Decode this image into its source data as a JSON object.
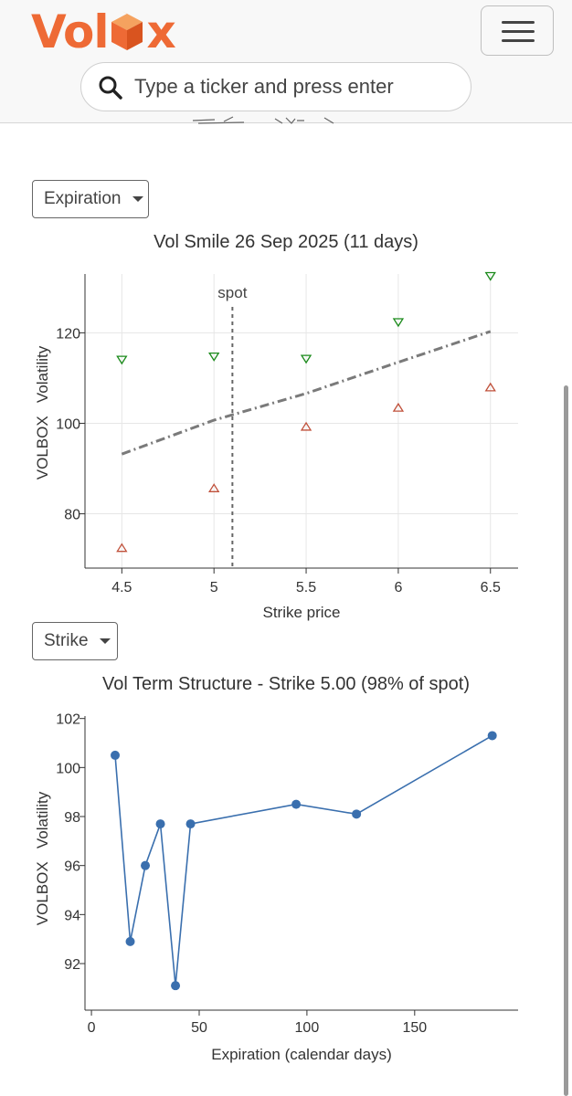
{
  "header": {
    "logo_text_pre": "Vol",
    "logo_text_post": "x",
    "logo_cube_letter": "bo",
    "menu_icon": "hamburger-menu-icon",
    "search": {
      "icon": "search-icon",
      "placeholder": "Type a ticker and press enter"
    },
    "colors": {
      "brand": "#ee6a35",
      "cube_top": "#f5a25f",
      "cube_side": "#ee6a35"
    }
  },
  "controls": {
    "expiration_label": "Expiration",
    "strike_label": "Strike"
  },
  "colors": {
    "line_blue": "#3a6fae",
    "fit_gray": "#7a7a7a",
    "ask_green": "#1a8a1a",
    "bid_red": "#c0503a",
    "grid": "#e6e6e6"
  },
  "chart_data": [
    {
      "type": "scatter",
      "title": "Vol Smile 26 Sep 2025 (11 days)",
      "xlabel": "Strike price",
      "ylabel": "VOLBOX   Volatility",
      "xlim": [
        4.3,
        6.65
      ],
      "ylim": [
        68,
        133
      ],
      "xticks": [
        4.5,
        5,
        5.5,
        6,
        6.5
      ],
      "xtick_labels": [
        "4.5",
        "5",
        "5.5",
        "6",
        "6.5"
      ],
      "yticks": [
        80,
        100,
        120
      ],
      "grid": true,
      "spot": {
        "label": "spot",
        "x": 5.1
      },
      "series": [
        {
          "marker": "triangle-down",
          "x": [
            4.5,
            5,
            5.5,
            6,
            6.5
          ],
          "values": [
            114,
            114.7,
            114.2,
            122.3,
            132.5
          ]
        },
        {
          "marker": "triangle-up",
          "x": [
            4.5,
            5,
            5.5,
            6,
            6.5
          ],
          "values": [
            72.5,
            85.7,
            99.3,
            103.5,
            108
          ]
        },
        {
          "style": "dash-dot",
          "x": [
            4.5,
            5,
            5.5,
            6,
            6.5
          ],
          "values": [
            93.2,
            100.7,
            106.6,
            113.5,
            120.3
          ]
        }
      ]
    },
    {
      "type": "line",
      "title": "Vol Term Structure - Strike 5.00 (98% of spot)",
      "xlabel": "Expiration (calendar days)",
      "ylabel": "VOLBOX   Volatility",
      "xlim": [
        -3,
        198
      ],
      "ylim": [
        90.1,
        102.1
      ],
      "xticks": [
        0,
        50,
        100,
        150
      ],
      "yticks": [
        92,
        94,
        96,
        98,
        100,
        102
      ],
      "grid": false,
      "series": [
        {
          "x": [
            11,
            18,
            25,
            32,
            39,
            46,
            95,
            123,
            186
          ],
          "values": [
            100.5,
            92.9,
            96,
            97.7,
            91.1,
            97.7,
            98.5,
            98.1,
            101.3
          ]
        }
      ]
    }
  ]
}
